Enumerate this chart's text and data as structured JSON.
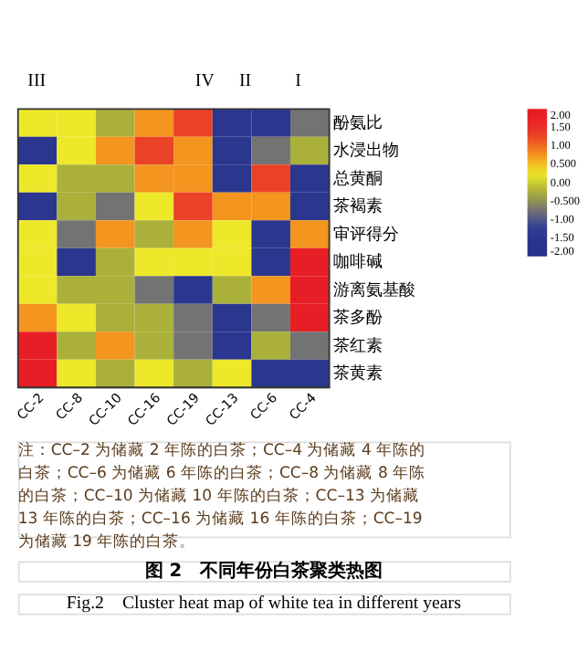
{
  "chart_data": {
    "type": "heatmap",
    "title": "图 2　不同年份白茶聚类热图",
    "subtitle": "Fig.2　Cluster heat map of white tea in different years",
    "categories": [
      "CC-2",
      "CC-8",
      "CC-10",
      "CC-16",
      "CC-19",
      "CC-13",
      "CC-6",
      "CC-4"
    ],
    "y_categories": [
      "酚氨比",
      "水浸出物",
      "总黄酮",
      "茶褐素",
      "审评得分",
      "咖啡碱",
      "游离氨基酸",
      "茶多酚",
      "茶红素",
      "茶黄素"
    ],
    "cells": [
      [
        0.25,
        0.25,
        -0.25,
        0.75,
        1.25,
        -1.5,
        -1.5,
        -0.75
      ],
      [
        -1.5,
        0.25,
        0.75,
        1.25,
        0.75,
        -1.5,
        -0.75,
        -0.25
      ],
      [
        0.25,
        -0.25,
        -0.25,
        0.75,
        0.75,
        -1.5,
        1.25,
        -1.5
      ],
      [
        -1.5,
        -0.25,
        -0.75,
        0.25,
        1.25,
        0.75,
        0.75,
        -1.5
      ],
      [
        0.25,
        -0.75,
        0.75,
        -0.25,
        0.75,
        0.25,
        -1.5,
        0.75
      ],
      [
        0.25,
        -1.5,
        -0.25,
        0.25,
        0.25,
        0.25,
        -1.5,
        1.75
      ],
      [
        0.25,
        -0.25,
        -0.25,
        -0.75,
        -1.5,
        -0.25,
        0.75,
        1.75
      ],
      [
        0.75,
        0.25,
        -0.25,
        -0.25,
        -0.75,
        -1.5,
        -0.75,
        1.75
      ],
      [
        1.75,
        -0.25,
        0.75,
        -0.25,
        -0.75,
        -1.5,
        -0.25,
        -0.75
      ],
      [
        1.75,
        0.25,
        -0.25,
        0.25,
        -0.25,
        0.25,
        -1.5,
        -1.5
      ]
    ],
    "clim": [
      -2,
      2
    ],
    "cticks": [
      {
        "value": -2,
        "label": "-2.00"
      },
      {
        "value": -1.5,
        "label": "-1.50"
      },
      {
        "value": -1,
        "label": "-1.00"
      },
      {
        "value": -0.5,
        "label": "-0.500"
      },
      {
        "value": 0,
        "label": "0.00"
      },
      {
        "value": 0.5,
        "label": "0.500"
      },
      {
        "value": 1,
        "label": "1.00"
      },
      {
        "value": 1.5,
        "label": "1.50"
      },
      {
        "value": 2,
        "label": "2.00"
      }
    ],
    "colors": [
      "#28328a",
      "#2e3a94",
      "#737373",
      "#aab03a",
      "#eee82a",
      "#f3951e",
      "#ea4226",
      "#e81e26"
    ],
    "annotations": [
      "III",
      "IV",
      "II",
      "I",
      "注：CC–2 为储藏 2 年陈的白茶；CC–4 为储藏 4 年陈的白茶；CC–6 为储藏 6 年陈的白茶；CC–8 为储藏 8 年陈的白茶；CC–10 为储藏 10 年陈的白茶；CC–13 为储藏 13 年陈的白茶；CC–16 为储藏 16 年陈的白茶；CC–19 为储藏 19 年陈的白茶。"
    ]
  }
}
